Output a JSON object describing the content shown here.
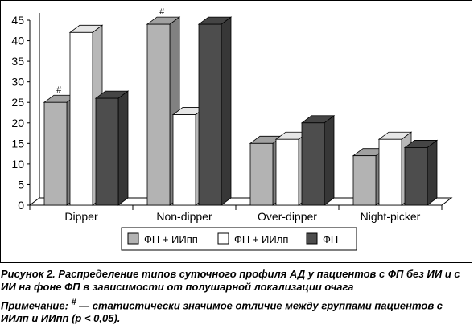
{
  "chart_data": {
    "type": "bar",
    "categories": [
      "Dipper",
      "Non-dipper",
      "Over-dipper",
      "Night-picker"
    ],
    "series": [
      {
        "name": "ФП + ИИпп",
        "values": [
          25,
          44,
          15,
          12
        ],
        "color": "#b3b3b3"
      },
      {
        "name": "ФП + ИИлп",
        "values": [
          42,
          22,
          16,
          16
        ],
        "color": "#ffffff"
      },
      {
        "name": "ФП",
        "values": [
          26,
          44,
          20,
          14
        ],
        "color": "#4d4d4d"
      }
    ],
    "ylim": [
      0,
      45
    ],
    "yticks": [
      "0",
      "5",
      "10",
      "15",
      "20",
      "25",
      "30",
      "35",
      "40",
      "45"
    ],
    "grid": false,
    "legend_position": "bottom",
    "three_d": true,
    "annotations": [
      {
        "text": "#",
        "category": "Dipper",
        "series": "ФП + ИИпп"
      },
      {
        "text": "#",
        "category": "Non-dipper",
        "series": "ФП + ИИпп"
      }
    ]
  },
  "caption": {
    "title": "Рисунок 2. Распределение типов суточного профиля АД у пациентов с ФП без ИИ и с ИИ на фоне ФП в зависимости от полушарной локализации очага",
    "note_prefix": "Примечание: ",
    "note_mark": "#",
    "note_text": " — статистически значимое отличие между группами пациентов с ИИлп и ИИпп (p < 0,05)."
  }
}
